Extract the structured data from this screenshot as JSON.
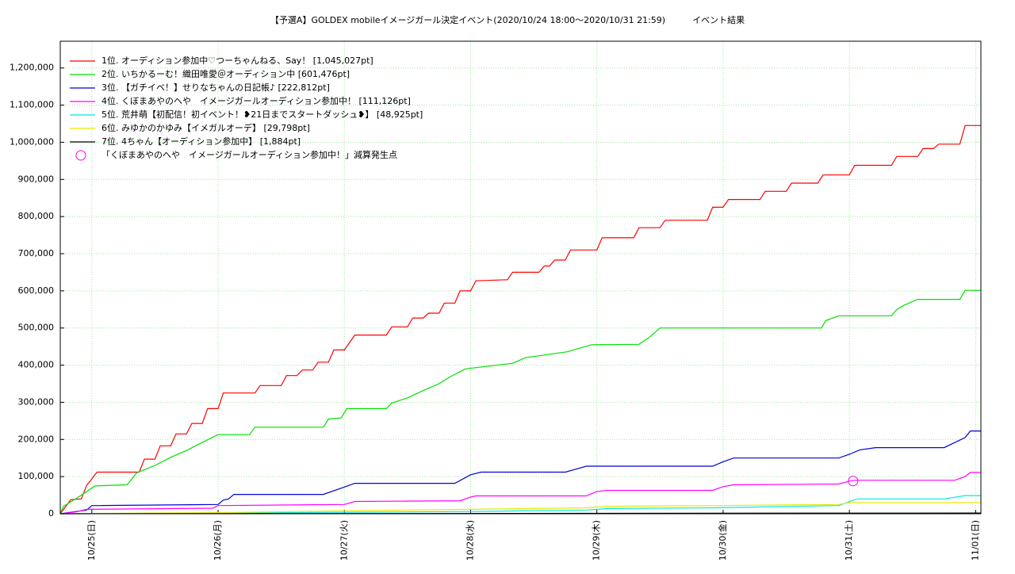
{
  "chart_data": {
    "type": "line",
    "title": "【予選A】GOLDEX mobileイメージガール決定イベント(2020/10/24 18:00〜2020/10/31 21:59)",
    "subtitle": "イベント結果",
    "xlim": [
      0,
      175
    ],
    "xticks": [
      {
        "value": 6,
        "label": "10/25(日)"
      },
      {
        "value": 30,
        "label": "10/26(月)"
      },
      {
        "value": 54,
        "label": "10/27(火)"
      },
      {
        "value": 78,
        "label": "10/28(水)"
      },
      {
        "value": 102,
        "label": "10/29(木)"
      },
      {
        "value": 126,
        "label": "10/30(金)"
      },
      {
        "value": 150,
        "label": "10/31(土)"
      },
      {
        "value": 174,
        "label": "11/01(日)"
      }
    ],
    "ylim": [
      0,
      1272000
    ],
    "yticks": [
      0,
      {
        "value": 100000,
        "label": "100,000"
      },
      {
        "value": 200000,
        "label": "200,000"
      },
      {
        "value": 300000,
        "label": "300,000"
      },
      {
        "value": 400000,
        "label": "400,000"
      },
      {
        "value": 500000,
        "label": "500,000"
      },
      {
        "value": 600000,
        "label": "600,000"
      },
      {
        "value": 700000,
        "label": "700,000"
      },
      {
        "value": 800000,
        "label": "800,000"
      },
      {
        "value": 900000,
        "label": "900,000"
      },
      {
        "value": 1000000,
        "label": "1,000,000"
      },
      {
        "value": 1100000,
        "label": "1,100,000"
      },
      {
        "value": 1200000,
        "label": "1,200,000"
      }
    ],
    "grid": true,
    "legend": "upper left",
    "series": [
      {
        "name": "1位. オーディション参加中♡つーちゃんねる、Say！ [1,045,027pt]",
        "color": "#ff0000",
        "x": [
          0,
          2,
          4,
          5,
          7,
          15,
          16,
          18,
          19,
          21,
          22,
          24,
          25,
          27,
          28,
          30,
          31,
          37,
          38,
          42,
          43,
          45,
          46,
          48,
          49,
          51,
          52,
          54,
          56,
          62,
          63,
          66,
          67,
          69,
          70,
          72,
          73,
          75,
          76,
          78,
          79,
          85,
          86,
          91,
          92,
          93,
          94,
          96,
          97,
          102,
          103,
          109,
          110,
          114,
          115,
          123,
          124,
          126,
          127,
          133,
          134,
          138,
          139,
          144,
          145,
          150,
          151,
          158,
          159,
          163,
          164,
          166,
          167,
          171,
          172,
          175
        ],
        "values": [
          0,
          38000,
          40000,
          76000,
          112000,
          112000,
          147000,
          147000,
          183000,
          183000,
          215000,
          215000,
          243000,
          243000,
          283000,
          283000,
          325000,
          325000,
          345000,
          345000,
          372000,
          372000,
          387000,
          387000,
          408000,
          408000,
          441000,
          441000,
          481000,
          481000,
          503000,
          503000,
          527000,
          527000,
          540000,
          540000,
          567000,
          567000,
          600000,
          600000,
          627000,
          630000,
          650000,
          650000,
          667000,
          667000,
          683000,
          683000,
          710000,
          710000,
          743000,
          743000,
          770000,
          770000,
          790000,
          790000,
          825000,
          825000,
          846000,
          846000,
          868000,
          868000,
          890000,
          890000,
          912000,
          912000,
          938000,
          938000,
          962000,
          962000,
          983000,
          983000,
          995000,
          995000,
          1045027,
          1045027
        ]
      },
      {
        "name": "2位. いちかるーむ！織田唯愛＠オーディション中 [601,476pt]",
        "color": "#00e000",
        "x": [
          0,
          0.6,
          2.9,
          4,
          6.6,
          12.7,
          14.5,
          18,
          21,
          24,
          26,
          30,
          36,
          37,
          50,
          51,
          53.4,
          54.5,
          62,
          63,
          66,
          68,
          70,
          72,
          74,
          77,
          86,
          88.4,
          96.4,
          101,
          110,
          112,
          114,
          144.7,
          145.5,
          148,
          158,
          159,
          160.5,
          163,
          171,
          172,
          175
        ],
        "values": [
          0,
          20000,
          40000,
          50000,
          75000,
          78000,
          110000,
          130000,
          152000,
          170000,
          185000,
          213000,
          213000,
          233000,
          233000,
          255000,
          258000,
          283000,
          283000,
          298000,
          312000,
          325000,
          338000,
          350000,
          368000,
          390000,
          405000,
          420000,
          436000,
          455000,
          456000,
          475000,
          500000,
          500000,
          520000,
          533000,
          533000,
          550000,
          562000,
          577000,
          577000,
          601476,
          601476
        ]
      },
      {
        "name": "3位. 【ガチイベ！】せりなちゃんの日記帳♪ [222,812pt]",
        "color": "#0000dd",
        "x": [
          0,
          5,
          6,
          30,
          31,
          32,
          33,
          50,
          54,
          56,
          75,
          78,
          80,
          96,
          98,
          100,
          124,
          126,
          128,
          148,
          150,
          152,
          155,
          168,
          172,
          173,
          175
        ],
        "values": [
          0,
          10000,
          22000,
          25000,
          37000,
          40000,
          52000,
          52000,
          72000,
          82000,
          82000,
          105000,
          112000,
          112000,
          120000,
          128000,
          128000,
          140000,
          150000,
          150000,
          160000,
          172000,
          178000,
          178000,
          205000,
          222812,
          222812
        ]
      },
      {
        "name": "4位. くぼまあやのへや　イメージガールオーディション参加中！ [111,126pt]",
        "color": "#ff00ff",
        "x": [
          0,
          3,
          5,
          29,
          30,
          54,
          56,
          76,
          78,
          79,
          100,
          102,
          104,
          124,
          126,
          128,
          148,
          150,
          151,
          170,
          172,
          173,
          175
        ],
        "values": [
          0,
          5000,
          12000,
          15000,
          22000,
          25000,
          33000,
          35000,
          45000,
          48000,
          48000,
          60000,
          63000,
          63000,
          73000,
          78000,
          80000,
          88000,
          90000,
          90000,
          100000,
          111126,
          111126
        ]
      },
      {
        "name": "5位. 荒井萌【初配信！初イベント！❥21日までスタートダッシュ❥】 [48,925pt]",
        "color": "#00e8e8",
        "x": [
          0,
          30,
          54,
          78,
          100,
          104,
          124,
          148,
          151,
          152,
          168,
          172,
          175
        ],
        "values": [
          0,
          2000,
          4000,
          6000,
          10000,
          14000,
          16000,
          22000,
          38000,
          40000,
          40000,
          48925,
          48925
        ]
      },
      {
        "name": "6位. みゆかのかゆみ【イメガルオーデ】 [29,798pt]",
        "color": "#e8e800",
        "x": [
          0,
          30,
          54,
          78,
          100,
          104,
          124,
          148,
          150,
          175
        ],
        "values": [
          0,
          3000,
          8000,
          12000,
          16000,
          20000,
          22000,
          25000,
          29798,
          29798
        ]
      },
      {
        "name": "7位. 4ちゃん【オーディション参加中】 [1,884pt]",
        "color": "#000000",
        "x": [
          0,
          175
        ],
        "values": [
          0,
          1884
        ]
      },
      {
        "name": "「くぼまあやのへや　イメージガールオーディション参加中！」減算発生点",
        "color": "#ff00ff",
        "marker": "circle",
        "x": [
          150.7
        ],
        "values": [
          88000
        ]
      }
    ]
  }
}
